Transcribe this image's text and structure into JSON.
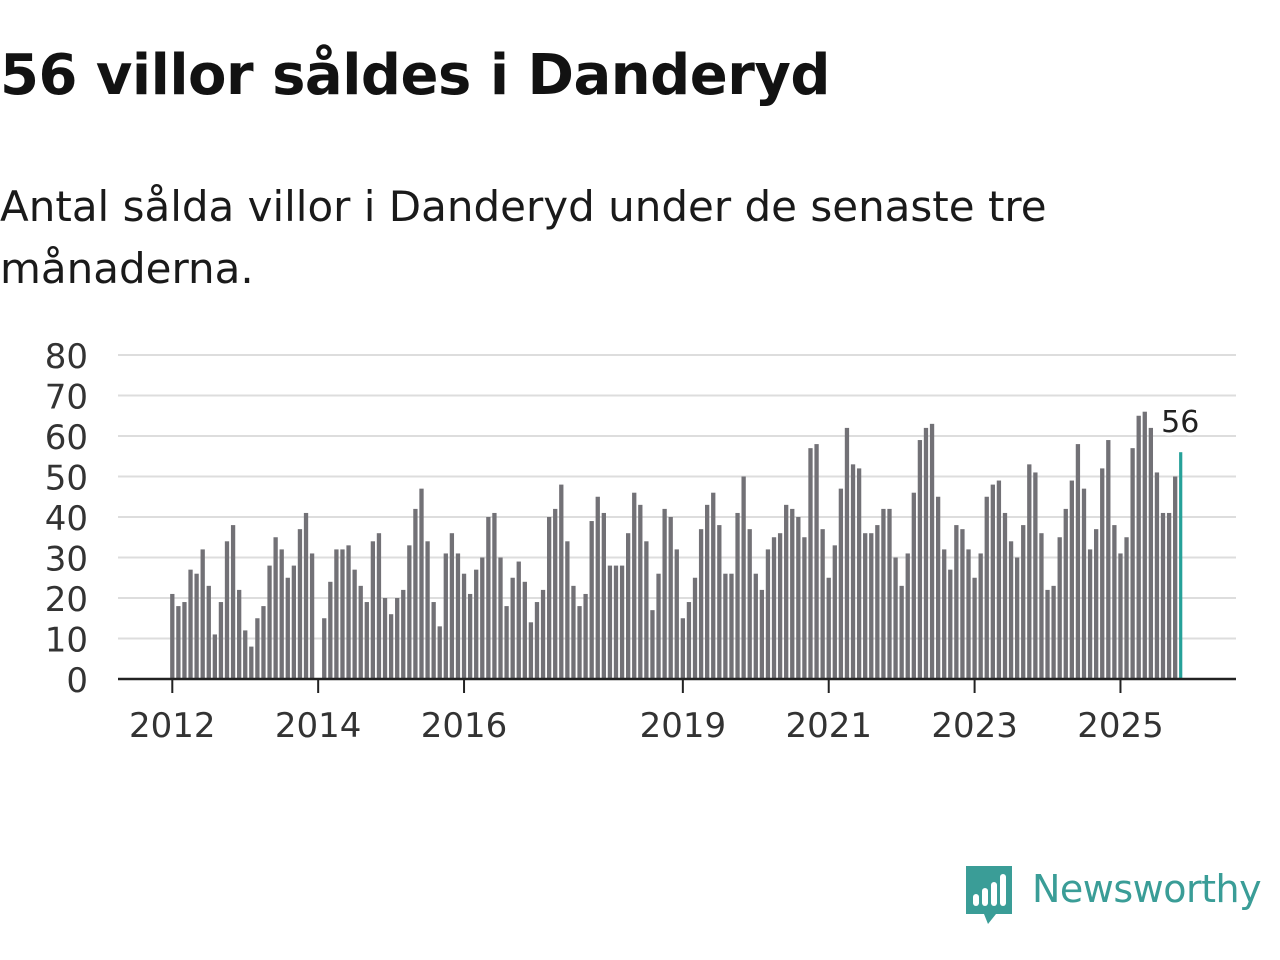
{
  "title": "56 villor såldes i Danderyd",
  "subtitle": "Antal sålda villor i Danderyd under de senaste tre månaderna.",
  "brand": {
    "name": "Newsworthy",
    "color": "#3a9d97",
    "icon": "newsworthy-logo-icon"
  },
  "colors": {
    "bar": "#727176",
    "highlight": "#26a199",
    "grid": "#dddddd",
    "axis": "#222222",
    "tick_text": "#333333"
  },
  "chart_data": {
    "type": "bar",
    "title": "56 villor såldes i Danderyd",
    "ylabel": "",
    "xlabel": "",
    "ylim": [
      0,
      80
    ],
    "yticks": [
      "0",
      "10",
      "20",
      "30",
      "40",
      "50",
      "60",
      "70",
      "80"
    ],
    "grid": true,
    "x_start": "2012-01",
    "xtick_labels": [
      {
        "label": "2012",
        "index": 0
      },
      {
        "label": "2014",
        "index": 24
      },
      {
        "label": "2016",
        "index": 48
      },
      {
        "label": "2019",
        "index": 84
      },
      {
        "label": "2021",
        "index": 108
      },
      {
        "label": "2023",
        "index": 132
      },
      {
        "label": "2025",
        "index": 156
      }
    ],
    "values": [
      21,
      18,
      19,
      27,
      26,
      32,
      23,
      11,
      19,
      34,
      38,
      22,
      12,
      8,
      15,
      18,
      28,
      35,
      32,
      25,
      28,
      37,
      41,
      31,
      0,
      15,
      24,
      32,
      32,
      33,
      27,
      23,
      19,
      34,
      36,
      20,
      16,
      20,
      22,
      33,
      42,
      47,
      34,
      19,
      13,
      31,
      36,
      31,
      26,
      21,
      27,
      30,
      40,
      41,
      30,
      18,
      25,
      29,
      24,
      14,
      19,
      22,
      40,
      42,
      48,
      34,
      23,
      18,
      21,
      39,
      45,
      41,
      28,
      28,
      28,
      36,
      46,
      43,
      34,
      17,
      26,
      42,
      40,
      32,
      15,
      19,
      25,
      37,
      43,
      46,
      38,
      26,
      26,
      41,
      50,
      37,
      26,
      22,
      32,
      35,
      36,
      43,
      42,
      40,
      35,
      57,
      58,
      37,
      25,
      33,
      47,
      62,
      53,
      52,
      36,
      36,
      38,
      42,
      42,
      30,
      23,
      31,
      46,
      59,
      62,
      63,
      45,
      32,
      27,
      38,
      37,
      32,
      25,
      31,
      45,
      48,
      49,
      41,
      34,
      30,
      38,
      53,
      51,
      36,
      22,
      23,
      35,
      42,
      49,
      58,
      47,
      32,
      37,
      52,
      59,
      38,
      31,
      35,
      57,
      65,
      66,
      62,
      51,
      41,
      41,
      50,
      56
    ],
    "highlight_last": true,
    "annotation": {
      "label": "56",
      "index": 166
    }
  }
}
